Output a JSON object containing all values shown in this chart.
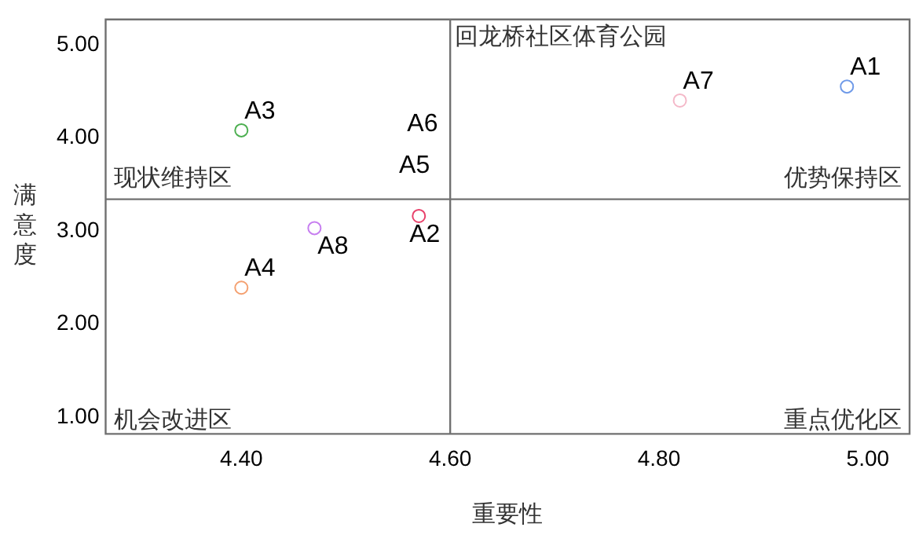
{
  "chart_data": {
    "type": "scatter",
    "title": "回龙桥社区体育公园",
    "xlabel": "重要性",
    "ylabel": "满意度",
    "xlim": [
      4.27,
      5.04
    ],
    "ylim": [
      0.82,
      5.27
    ],
    "xticks": [
      {
        "value": 4.4,
        "label": "4.40"
      },
      {
        "value": 4.6,
        "label": "4.60"
      },
      {
        "value": 4.8,
        "label": "4.80"
      },
      {
        "value": 5,
        "label": "5.00"
      }
    ],
    "yticks": [
      {
        "value": 1,
        "label": "1.00"
      },
      {
        "value": 2,
        "label": "2.00"
      },
      {
        "value": 3,
        "label": "3.00"
      },
      {
        "value": 4,
        "label": "4.00"
      },
      {
        "value": 5,
        "label": "5.00"
      }
    ],
    "series": [
      {
        "name": "A1",
        "color": "#6f9ae8",
        "x": [
          4.98
        ],
        "values": [
          4.55
        ]
      },
      {
        "name": "A2",
        "color": "#e8406a",
        "x": [
          4.57
        ],
        "values": [
          3.16
        ]
      },
      {
        "name": "A3",
        "color": "#4caf50",
        "x": [
          4.4
        ],
        "values": [
          4.08
        ]
      },
      {
        "name": "A4",
        "color": "#f4a070",
        "x": [
          4.4
        ],
        "values": [
          2.39
        ]
      },
      {
        "name": "A7",
        "color": "#f4b8c8",
        "x": [
          4.82
        ],
        "values": [
          4.4
        ]
      },
      {
        "name": "A8",
        "color": "#c77ef0",
        "x": [
          4.47
        ],
        "values": [
          3.03
        ]
      }
    ],
    "annotations": [
      "A6",
      "A5",
      "现状维持区",
      "优势保持区",
      "机会改进区",
      "重点优化区"
    ],
    "ref_lines": [
      {
        "axis": "x",
        "value": 4.6,
        "color": "#707070"
      },
      {
        "axis": "y",
        "value": 3.34,
        "color": "#707070"
      }
    ],
    "marker": "circle",
    "grid": false,
    "legend": false
  }
}
